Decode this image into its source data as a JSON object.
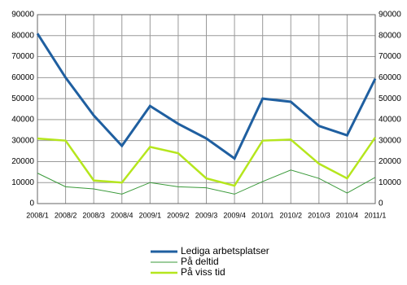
{
  "chart_data": {
    "type": "line",
    "categories": [
      "2008/1",
      "2008/2",
      "2008/3",
      "2008/4",
      "2009/1",
      "2009/2",
      "2009/3",
      "2009/4",
      "2010/1",
      "2010/2",
      "2010/3",
      "2010/4",
      "2011/1"
    ],
    "series": [
      {
        "name": "Lediga arbetsplatser",
        "color": "#1f5fa0",
        "values": [
          81000,
          60000,
          42000,
          27500,
          46500,
          38000,
          31000,
          21500,
          50000,
          48500,
          37000,
          32500,
          59500
        ]
      },
      {
        "name": "På deltid",
        "color": "#3a9a3a",
        "values": [
          14500,
          8000,
          7000,
          4500,
          10000,
          8000,
          7500,
          4500,
          10500,
          16000,
          12000,
          5000,
          12500
        ]
      },
      {
        "name": "På viss tid",
        "color": "#b5e61d",
        "values": [
          31000,
          30000,
          11000,
          10000,
          27000,
          24000,
          12000,
          8500,
          30000,
          30500,
          19000,
          12000,
          31500
        ]
      }
    ],
    "ylim": [
      0,
      90000
    ],
    "yticks": [
      0,
      10000,
      20000,
      30000,
      40000,
      50000,
      60000,
      70000,
      80000,
      90000
    ],
    "grid": true
  }
}
